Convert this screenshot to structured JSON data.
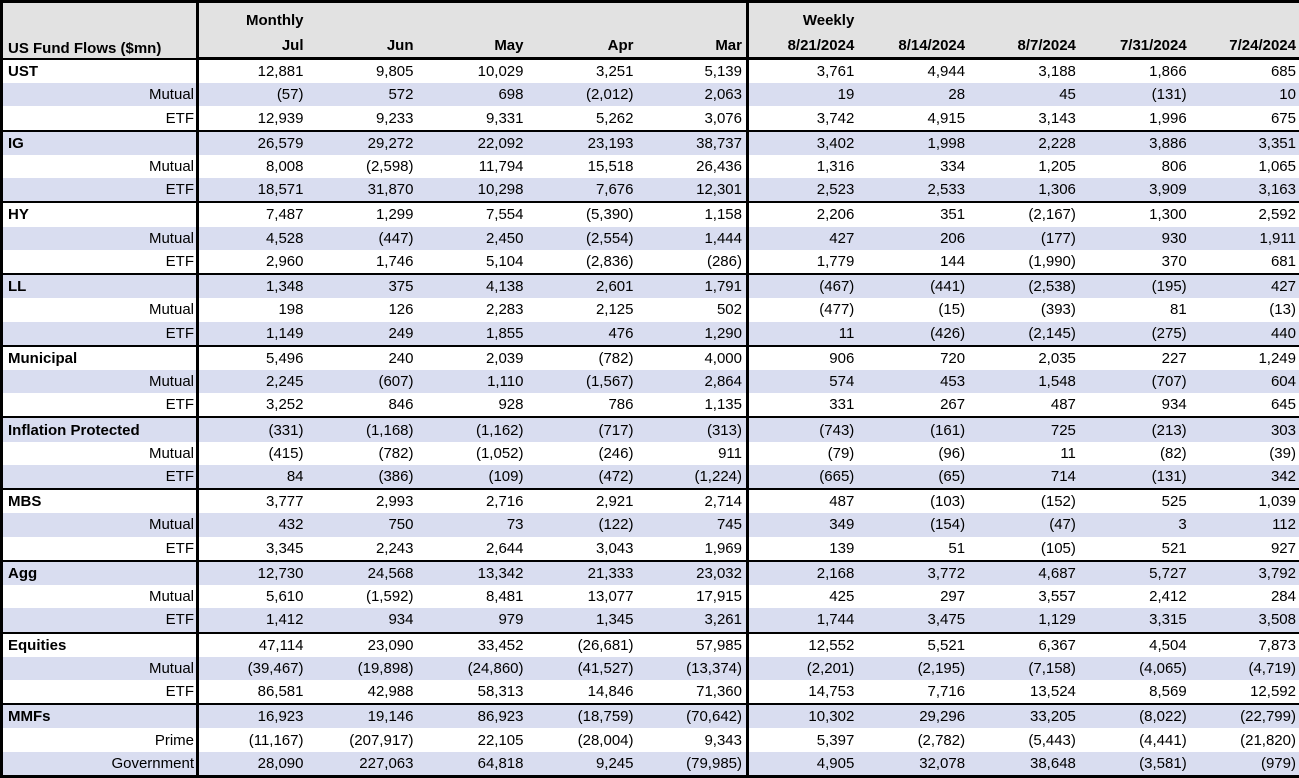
{
  "header": {
    "title": "US Fund Flows ($mn)"
  },
  "sections": {
    "monthly": {
      "label": "Monthly",
      "columns": [
        "Jul",
        "Jun",
        "May",
        "Apr",
        "Mar"
      ]
    },
    "weekly": {
      "label": "Weekly",
      "columns": [
        "8/21/2024",
        "8/14/2024",
        "8/7/2024",
        "7/31/2024",
        "7/24/2024"
      ]
    }
  },
  "colors": {
    "band_bg": "#d9ddf0",
    "header_bg": "#e2e2e2",
    "grid": "#000000",
    "text": "#000000"
  },
  "groups": [
    {
      "rows": [
        {
          "label": "UST",
          "category": true,
          "values": [
            "12,881",
            "9,805",
            "10,029",
            "3,251",
            "5,139",
            "3,761",
            "4,944",
            "3,188",
            "1,866",
            "685"
          ]
        },
        {
          "label": "Mutual",
          "category": false,
          "values": [
            "(57)",
            "572",
            "698",
            "(2,012)",
            "2,063",
            "19",
            "28",
            "45",
            "(131)",
            "10"
          ]
        },
        {
          "label": "ETF",
          "category": false,
          "values": [
            "12,939",
            "9,233",
            "9,331",
            "5,262",
            "3,076",
            "3,742",
            "4,915",
            "3,143",
            "1,996",
            "675"
          ]
        }
      ]
    },
    {
      "rows": [
        {
          "label": "IG",
          "category": true,
          "values": [
            "26,579",
            "29,272",
            "22,092",
            "23,193",
            "38,737",
            "3,402",
            "1,998",
            "2,228",
            "3,886",
            "3,351"
          ]
        },
        {
          "label": "Mutual",
          "category": false,
          "values": [
            "8,008",
            "(2,598)",
            "11,794",
            "15,518",
            "26,436",
            "1,316",
            "334",
            "1,205",
            "806",
            "1,065"
          ]
        },
        {
          "label": "ETF",
          "category": false,
          "values": [
            "18,571",
            "31,870",
            "10,298",
            "7,676",
            "12,301",
            "2,523",
            "2,533",
            "1,306",
            "3,909",
            "3,163"
          ]
        }
      ]
    },
    {
      "rows": [
        {
          "label": "HY",
          "category": true,
          "values": [
            "7,487",
            "1,299",
            "7,554",
            "(5,390)",
            "1,158",
            "2,206",
            "351",
            "(2,167)",
            "1,300",
            "2,592"
          ]
        },
        {
          "label": "Mutual",
          "category": false,
          "values": [
            "4,528",
            "(447)",
            "2,450",
            "(2,554)",
            "1,444",
            "427",
            "206",
            "(177)",
            "930",
            "1,911"
          ]
        },
        {
          "label": "ETF",
          "category": false,
          "values": [
            "2,960",
            "1,746",
            "5,104",
            "(2,836)",
            "(286)",
            "1,779",
            "144",
            "(1,990)",
            "370",
            "681"
          ]
        }
      ]
    },
    {
      "rows": [
        {
          "label": "LL",
          "category": true,
          "values": [
            "1,348",
            "375",
            "4,138",
            "2,601",
            "1,791",
            "(467)",
            "(441)",
            "(2,538)",
            "(195)",
            "427"
          ]
        },
        {
          "label": "Mutual",
          "category": false,
          "values": [
            "198",
            "126",
            "2,283",
            "2,125",
            "502",
            "(477)",
            "(15)",
            "(393)",
            "81",
            "(13)"
          ]
        },
        {
          "label": "ETF",
          "category": false,
          "values": [
            "1,149",
            "249",
            "1,855",
            "476",
            "1,290",
            "11",
            "(426)",
            "(2,145)",
            "(275)",
            "440"
          ]
        }
      ]
    },
    {
      "rows": [
        {
          "label": "Municipal",
          "category": true,
          "values": [
            "5,496",
            "240",
            "2,039",
            "(782)",
            "4,000",
            "906",
            "720",
            "2,035",
            "227",
            "1,249"
          ]
        },
        {
          "label": "Mutual",
          "category": false,
          "values": [
            "2,245",
            "(607)",
            "1,110",
            "(1,567)",
            "2,864",
            "574",
            "453",
            "1,548",
            "(707)",
            "604"
          ]
        },
        {
          "label": "ETF",
          "category": false,
          "values": [
            "3,252",
            "846",
            "928",
            "786",
            "1,135",
            "331",
            "267",
            "487",
            "934",
            "645"
          ]
        }
      ]
    },
    {
      "rows": [
        {
          "label": "Inflation Protected",
          "category": true,
          "values": [
            "(331)",
            "(1,168)",
            "(1,162)",
            "(717)",
            "(313)",
            "(743)",
            "(161)",
            "725",
            "(213)",
            "303"
          ]
        },
        {
          "label": "Mutual",
          "category": false,
          "values": [
            "(415)",
            "(782)",
            "(1,052)",
            "(246)",
            "911",
            "(79)",
            "(96)",
            "11",
            "(82)",
            "(39)"
          ]
        },
        {
          "label": "ETF",
          "category": false,
          "values": [
            "84",
            "(386)",
            "(109)",
            "(472)",
            "(1,224)",
            "(665)",
            "(65)",
            "714",
            "(131)",
            "342"
          ]
        }
      ]
    },
    {
      "rows": [
        {
          "label": "MBS",
          "category": true,
          "values": [
            "3,777",
            "2,993",
            "2,716",
            "2,921",
            "2,714",
            "487",
            "(103)",
            "(152)",
            "525",
            "1,039"
          ]
        },
        {
          "label": "Mutual",
          "category": false,
          "values": [
            "432",
            "750",
            "73",
            "(122)",
            "745",
            "349",
            "(154)",
            "(47)",
            "3",
            "112"
          ]
        },
        {
          "label": "ETF",
          "category": false,
          "values": [
            "3,345",
            "2,243",
            "2,644",
            "3,043",
            "1,969",
            "139",
            "51",
            "(105)",
            "521",
            "927"
          ]
        }
      ]
    },
    {
      "rows": [
        {
          "label": "Agg",
          "category": true,
          "values": [
            "12,730",
            "24,568",
            "13,342",
            "21,333",
            "23,032",
            "2,168",
            "3,772",
            "4,687",
            "5,727",
            "3,792"
          ]
        },
        {
          "label": "Mutual",
          "category": false,
          "values": [
            "5,610",
            "(1,592)",
            "8,481",
            "13,077",
            "17,915",
            "425",
            "297",
            "3,557",
            "2,412",
            "284"
          ]
        },
        {
          "label": "ETF",
          "category": false,
          "values": [
            "1,412",
            "934",
            "979",
            "1,345",
            "3,261",
            "1,744",
            "3,475",
            "1,129",
            "3,315",
            "3,508"
          ]
        }
      ]
    },
    {
      "rows": [
        {
          "label": "Equities",
          "category": true,
          "values": [
            "47,114",
            "23,090",
            "33,452",
            "(26,681)",
            "57,985",
            "12,552",
            "5,521",
            "6,367",
            "4,504",
            "7,873"
          ]
        },
        {
          "label": "Mutual",
          "category": false,
          "values": [
            "(39,467)",
            "(19,898)",
            "(24,860)",
            "(41,527)",
            "(13,374)",
            "(2,201)",
            "(2,195)",
            "(7,158)",
            "(4,065)",
            "(4,719)"
          ]
        },
        {
          "label": "ETF",
          "category": false,
          "values": [
            "86,581",
            "42,988",
            "58,313",
            "14,846",
            "71,360",
            "14,753",
            "7,716",
            "13,524",
            "8,569",
            "12,592"
          ]
        }
      ]
    },
    {
      "rows": [
        {
          "label": "MMFs",
          "category": true,
          "values": [
            "16,923",
            "19,146",
            "86,923",
            "(18,759)",
            "(70,642)",
            "10,302",
            "29,296",
            "33,205",
            "(8,022)",
            "(22,799)"
          ]
        },
        {
          "label": "Prime",
          "category": false,
          "values": [
            "(11,167)",
            "(207,917)",
            "22,105",
            "(28,004)",
            "9,343",
            "5,397",
            "(2,782)",
            "(5,443)",
            "(4,441)",
            "(21,820)"
          ]
        },
        {
          "label": "Government",
          "category": false,
          "values": [
            "28,090",
            "227,063",
            "64,818",
            "9,245",
            "(79,985)",
            "4,905",
            "32,078",
            "38,648",
            "(3,581)",
            "(979)"
          ]
        }
      ]
    }
  ]
}
